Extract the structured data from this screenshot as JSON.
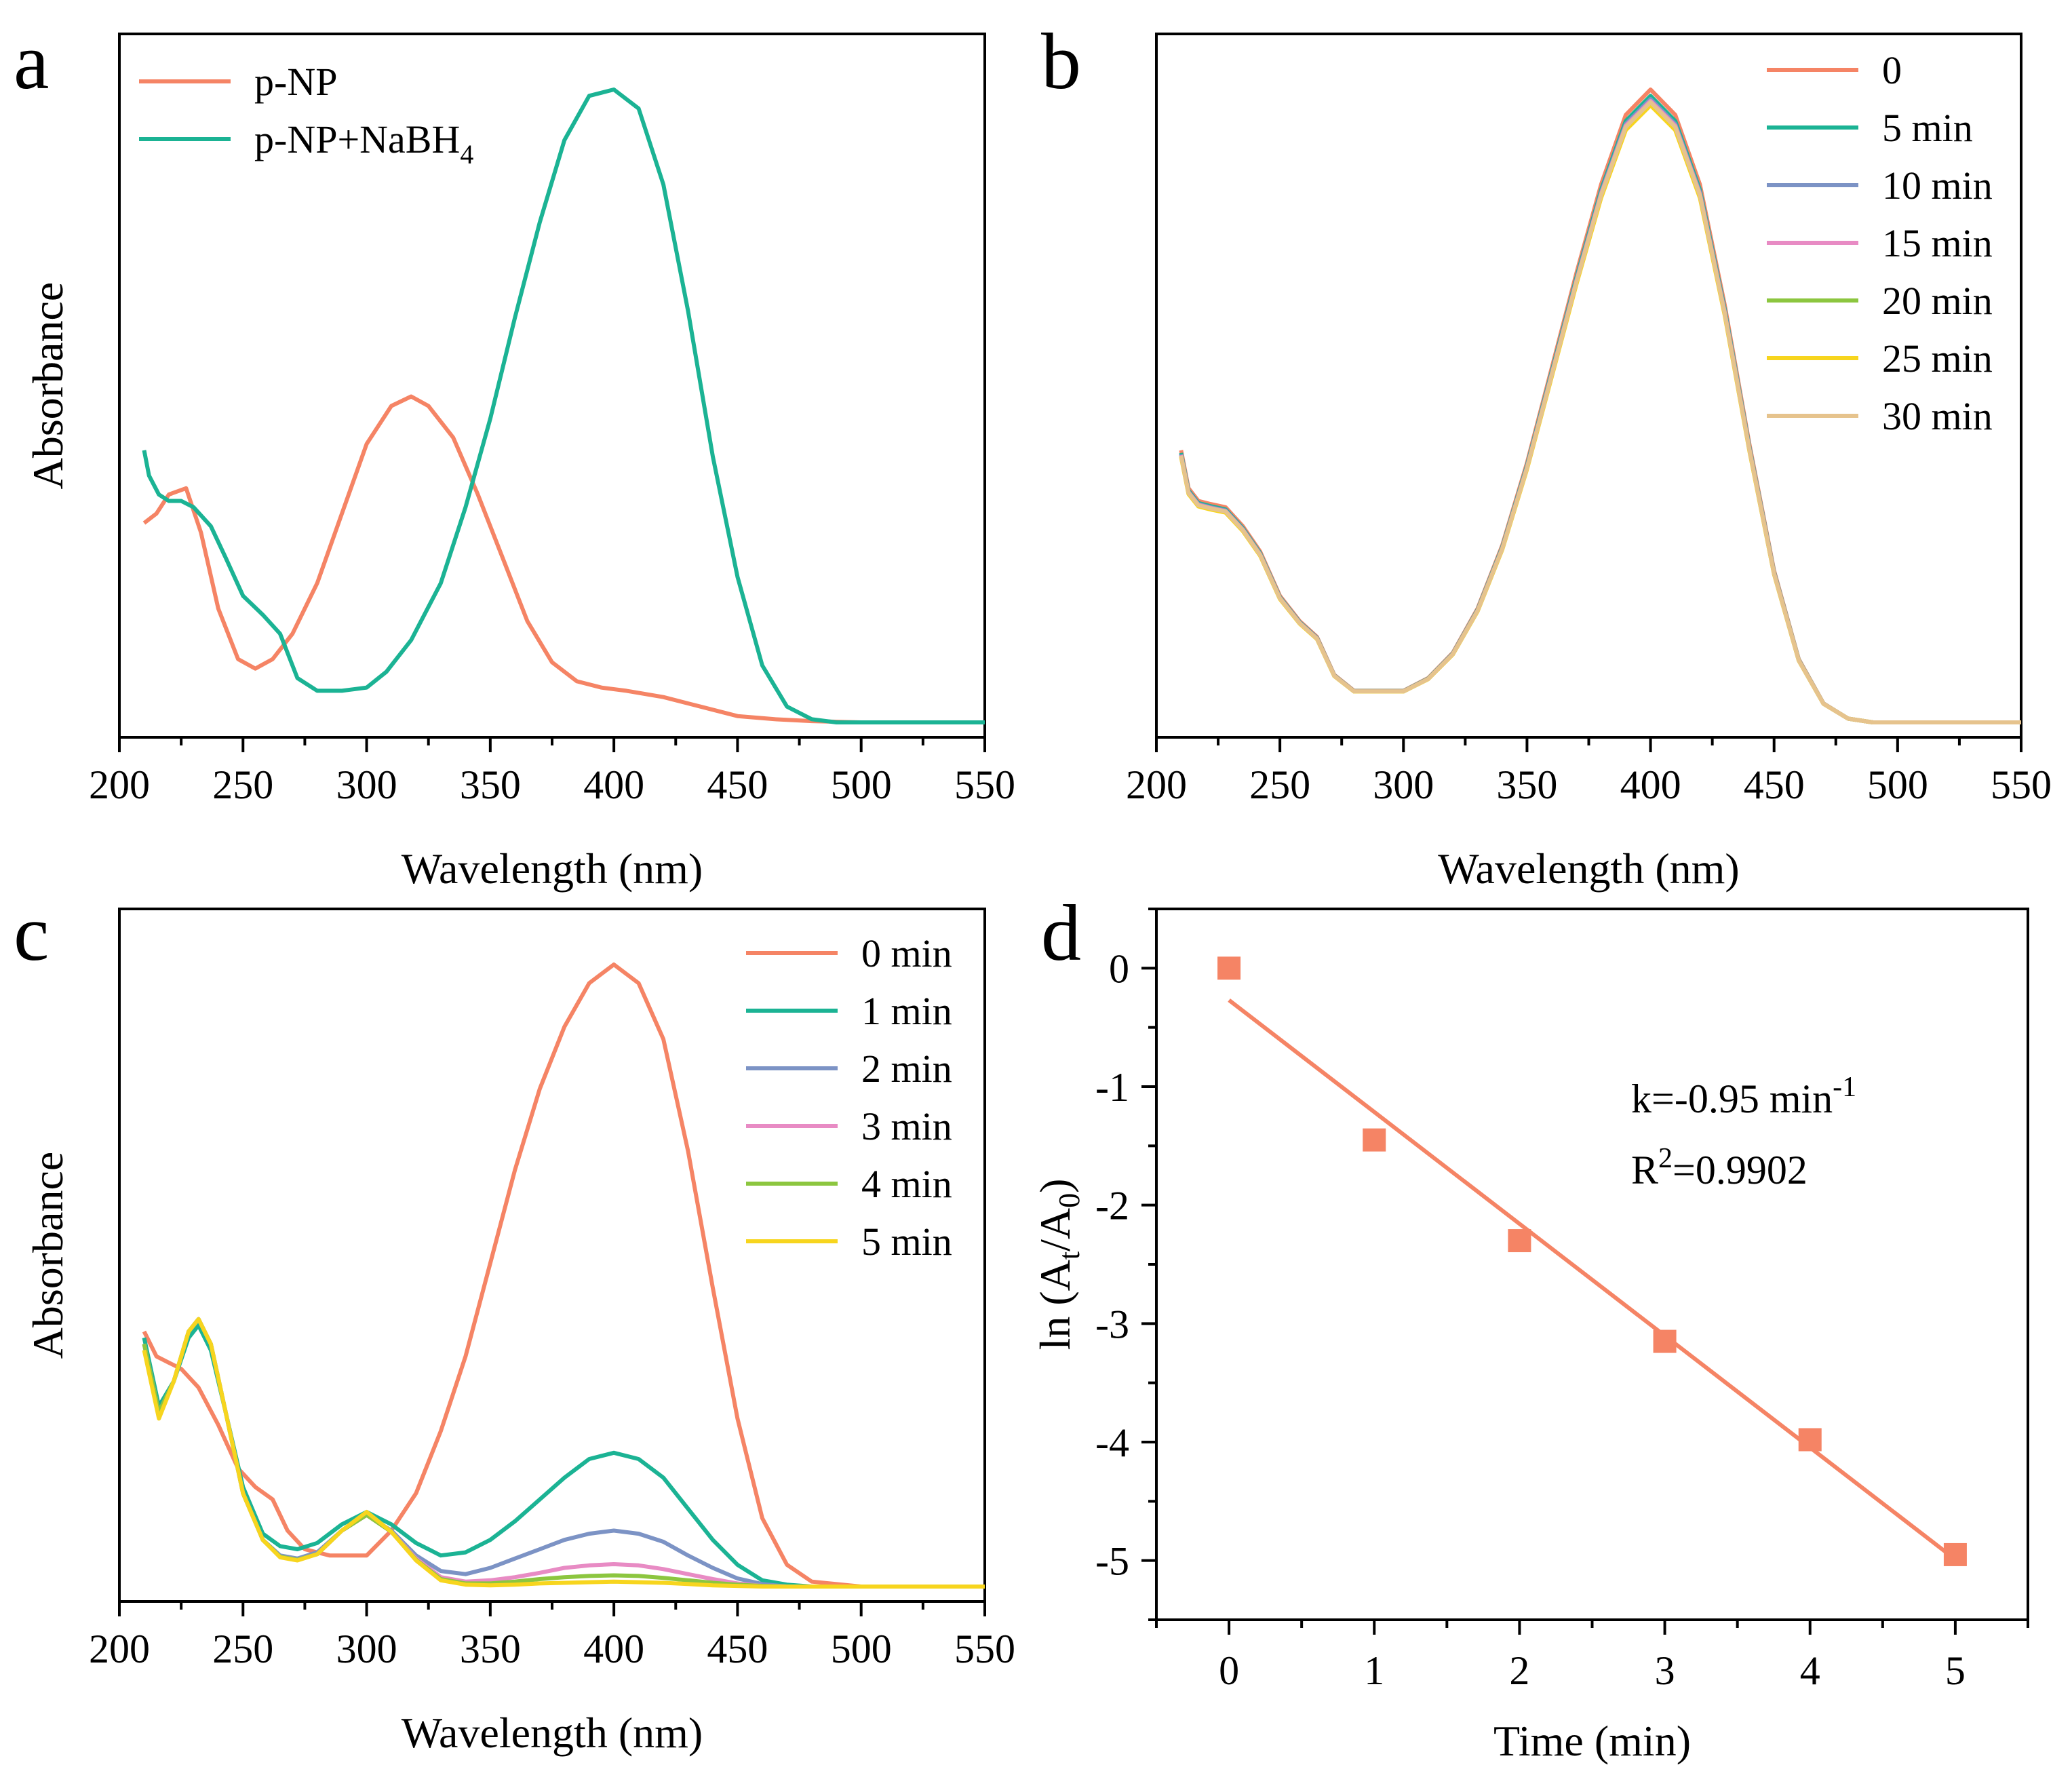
{
  "chart_data": [
    {
      "panel": "a",
      "type": "line",
      "xlabel": "Wavelength (nm)",
      "ylabel": "Absorbance",
      "xlim": [
        200,
        550
      ],
      "ylim": [
        0,
        1
      ],
      "xticks": [
        200,
        250,
        300,
        350,
        400,
        450,
        500,
        550
      ],
      "legend_position": "top-left",
      "series": [
        {
          "name": "p-NP",
          "color": "#F58465",
          "x": [
            210,
            215,
            220,
            227,
            233,
            240,
            248,
            255,
            262,
            270,
            280,
            290,
            300,
            310,
            318,
            325,
            335,
            345,
            355,
            365,
            375,
            385,
            395,
            405,
            420,
            435,
            450,
            465,
            480,
            500,
            550
          ],
          "y": [
            0.315,
            0.33,
            0.36,
            0.37,
            0.3,
            0.18,
            0.1,
            0.085,
            0.1,
            0.14,
            0.22,
            0.33,
            0.44,
            0.5,
            0.515,
            0.5,
            0.45,
            0.36,
            0.26,
            0.16,
            0.095,
            0.065,
            0.055,
            0.05,
            0.04,
            0.025,
            0.01,
            0.005,
            0.002,
            0.0,
            0.0
          ]
        },
        {
          "name": "p-NP+NaBH4",
          "legend_main": "p-NP+NaBH",
          "legend_sub": "4",
          "color": "#1BB394",
          "x": [
            210,
            212,
            216,
            220,
            225,
            230,
            237,
            243,
            250,
            258,
            265,
            272,
            280,
            290,
            300,
            308,
            318,
            330,
            340,
            350,
            360,
            370,
            380,
            390,
            400,
            410,
            420,
            430,
            440,
            450,
            460,
            470,
            480,
            490,
            500,
            550
          ],
          "y": [
            0.43,
            0.39,
            0.36,
            0.35,
            0.35,
            0.34,
            0.31,
            0.26,
            0.2,
            0.17,
            0.14,
            0.07,
            0.05,
            0.05,
            0.055,
            0.08,
            0.13,
            0.22,
            0.34,
            0.48,
            0.64,
            0.79,
            0.92,
            0.99,
            1.0,
            0.97,
            0.85,
            0.65,
            0.42,
            0.23,
            0.09,
            0.025,
            0.005,
            0.0,
            0.0,
            0.0
          ]
        }
      ]
    },
    {
      "panel": "b",
      "type": "line",
      "xlabel": "Wavelength (nm)",
      "ylabel": "Absorbance",
      "xlim": [
        200,
        550
      ],
      "ylim": [
        0,
        1
      ],
      "xticks": [
        200,
        250,
        300,
        350,
        400,
        450,
        500,
        550
      ],
      "legend_position": "top-right",
      "base_curve": {
        "x": [
          210,
          213,
          217,
          222,
          228,
          235,
          242,
          250,
          258,
          265,
          272,
          280,
          290,
          300,
          310,
          320,
          330,
          340,
          350,
          360,
          370,
          380,
          390,
          400,
          410,
          420,
          430,
          440,
          450,
          460,
          470,
          480,
          490,
          500,
          550
        ],
        "y": [
          0.43,
          0.37,
          0.35,
          0.345,
          0.34,
          0.31,
          0.27,
          0.2,
          0.16,
          0.135,
          0.075,
          0.05,
          0.05,
          0.05,
          0.07,
          0.11,
          0.18,
          0.28,
          0.41,
          0.56,
          0.71,
          0.85,
          0.96,
          1.0,
          0.96,
          0.85,
          0.66,
          0.44,
          0.24,
          0.1,
          0.03,
          0.006,
          0.0,
          0.0,
          0.0
        ]
      },
      "series": [
        {
          "name": "0",
          "color": "#F58465",
          "scale": 1.0
        },
        {
          "name": "5 min",
          "color": "#1BB394",
          "scale": 0.99
        },
        {
          "name": "10 min",
          "color": "#7C93C5",
          "scale": 0.985
        },
        {
          "name": "15 min",
          "color": "#E88BC4",
          "scale": 0.982
        },
        {
          "name": "20 min",
          "color": "#8CC63F",
          "scale": 0.978
        },
        {
          "name": "25 min",
          "color": "#F7D51E",
          "scale": 0.975
        },
        {
          "name": "30 min",
          "color": "#E6C38D",
          "scale": 0.98
        }
      ]
    },
    {
      "panel": "c",
      "type": "line",
      "xlabel": "Wavelength (nm)",
      "ylabel": "Absorbance",
      "xlim": [
        200,
        550
      ],
      "ylim": [
        0,
        1
      ],
      "xticks": [
        200,
        250,
        300,
        350,
        400,
        450,
        500,
        550
      ],
      "legend_position": "top-right",
      "series": [
        {
          "name": "0 min",
          "color": "#F58465",
          "x": [
            210,
            215,
            220,
            225,
            232,
            240,
            248,
            255,
            262,
            268,
            275,
            285,
            300,
            310,
            320,
            330,
            340,
            350,
            360,
            370,
            380,
            390,
            400,
            410,
            420,
            430,
            440,
            450,
            460,
            470,
            480,
            500,
            550
          ],
          "y": [
            0.41,
            0.37,
            0.36,
            0.35,
            0.32,
            0.26,
            0.19,
            0.16,
            0.14,
            0.09,
            0.06,
            0.05,
            0.05,
            0.09,
            0.15,
            0.25,
            0.37,
            0.52,
            0.67,
            0.8,
            0.9,
            0.97,
            1.0,
            0.97,
            0.88,
            0.7,
            0.48,
            0.27,
            0.11,
            0.035,
            0.008,
            0.0,
            0.0
          ]
        },
        {
          "name": "1 min",
          "color": "#1BB394",
          "x": [
            210,
            216,
            222,
            228,
            232,
            237,
            243,
            250,
            258,
            265,
            272,
            280,
            290,
            300,
            310,
            320,
            330,
            340,
            350,
            360,
            370,
            380,
            390,
            400,
            410,
            420,
            430,
            440,
            450,
            460,
            470,
            480,
            500,
            550
          ],
          "y": [
            0.4,
            0.29,
            0.33,
            0.4,
            0.42,
            0.38,
            0.28,
            0.16,
            0.085,
            0.065,
            0.06,
            0.07,
            0.1,
            0.12,
            0.1,
            0.07,
            0.05,
            0.055,
            0.075,
            0.105,
            0.14,
            0.175,
            0.205,
            0.215,
            0.205,
            0.175,
            0.125,
            0.075,
            0.035,
            0.01,
            0.003,
            0.0,
            0.0,
            0.0
          ]
        },
        {
          "name": "2 min",
          "color": "#7C93C5",
          "x": [
            210,
            216,
            222,
            228,
            232,
            237,
            243,
            250,
            258,
            265,
            272,
            280,
            290,
            300,
            310,
            320,
            330,
            340,
            350,
            360,
            370,
            380,
            390,
            400,
            410,
            420,
            430,
            440,
            450,
            460,
            470,
            500,
            550
          ],
          "y": [
            0.39,
            0.28,
            0.33,
            0.41,
            0.43,
            0.39,
            0.28,
            0.15,
            0.075,
            0.05,
            0.045,
            0.055,
            0.09,
            0.115,
            0.09,
            0.05,
            0.025,
            0.02,
            0.03,
            0.045,
            0.06,
            0.075,
            0.085,
            0.09,
            0.085,
            0.072,
            0.05,
            0.03,
            0.013,
            0.004,
            0.0,
            0.0,
            0.0
          ]
        },
        {
          "name": "3 min",
          "color": "#E88BC4",
          "x": [
            210,
            216,
            222,
            228,
            232,
            237,
            243,
            250,
            258,
            265,
            272,
            280,
            290,
            300,
            310,
            320,
            330,
            340,
            350,
            360,
            370,
            380,
            390,
            400,
            410,
            420,
            430,
            440,
            450,
            460,
            470,
            500,
            550
          ],
          "y": [
            0.39,
            0.28,
            0.33,
            0.41,
            0.43,
            0.39,
            0.28,
            0.15,
            0.075,
            0.048,
            0.043,
            0.052,
            0.09,
            0.115,
            0.088,
            0.045,
            0.015,
            0.008,
            0.01,
            0.015,
            0.022,
            0.03,
            0.034,
            0.036,
            0.034,
            0.028,
            0.02,
            0.012,
            0.005,
            0.001,
            0.0,
            0.0,
            0.0
          ]
        },
        {
          "name": "4 min",
          "color": "#8CC63F",
          "x": [
            210,
            216,
            222,
            228,
            232,
            237,
            243,
            250,
            258,
            265,
            272,
            280,
            290,
            300,
            310,
            320,
            330,
            340,
            350,
            360,
            370,
            380,
            390,
            400,
            410,
            420,
            430,
            440,
            450,
            460,
            470,
            500,
            550
          ],
          "y": [
            0.39,
            0.28,
            0.33,
            0.41,
            0.43,
            0.39,
            0.28,
            0.15,
            0.075,
            0.048,
            0.043,
            0.052,
            0.09,
            0.115,
            0.088,
            0.043,
            0.012,
            0.005,
            0.005,
            0.008,
            0.012,
            0.015,
            0.017,
            0.018,
            0.017,
            0.014,
            0.01,
            0.006,
            0.003,
            0.001,
            0.0,
            0.0,
            0.0
          ]
        },
        {
          "name": "5 min",
          "color": "#F7D51E",
          "x": [
            210,
            216,
            222,
            228,
            232,
            237,
            243,
            250,
            258,
            265,
            272,
            280,
            290,
            300,
            310,
            320,
            330,
            340,
            350,
            360,
            370,
            380,
            390,
            400,
            410,
            420,
            430,
            440,
            450,
            460,
            470,
            500,
            550
          ],
          "y": [
            0.38,
            0.27,
            0.33,
            0.41,
            0.43,
            0.39,
            0.28,
            0.15,
            0.075,
            0.047,
            0.042,
            0.052,
            0.09,
            0.12,
            0.088,
            0.042,
            0.01,
            0.003,
            0.002,
            0.003,
            0.005,
            0.006,
            0.007,
            0.008,
            0.007,
            0.006,
            0.004,
            0.002,
            0.001,
            0.0,
            0.0,
            0.0,
            0.0
          ]
        }
      ]
    },
    {
      "panel": "d",
      "type": "scatter",
      "xlabel": "Time (min)",
      "ylabel_parts": [
        "ln (A",
        "t",
        "/A",
        "0",
        ")"
      ],
      "xlim": [
        -0.5,
        5.5
      ],
      "ylim": [
        -5.5,
        0.5
      ],
      "xticks": [
        0,
        1,
        2,
        3,
        4,
        5
      ],
      "yticks": [
        0,
        -1,
        -2,
        -3,
        -4,
        -5
      ],
      "points": {
        "x": [
          0,
          1,
          2,
          3,
          4,
          5
        ],
        "y": [
          0.0,
          -1.45,
          -2.3,
          -3.15,
          -3.98,
          -4.95
        ]
      },
      "fit": {
        "x": [
          0,
          5
        ],
        "y": [
          -0.27,
          -4.99
        ],
        "color": "#F58465"
      },
      "marker_color": "#F58465",
      "annotation": {
        "k_main": "k=-0.95 min",
        "k_sup": "-1",
        "r_main": "R",
        "r_sup": "2",
        "r_rest": "=0.9902"
      }
    }
  ],
  "panel_labels": [
    "a",
    "b",
    "c",
    "d"
  ]
}
